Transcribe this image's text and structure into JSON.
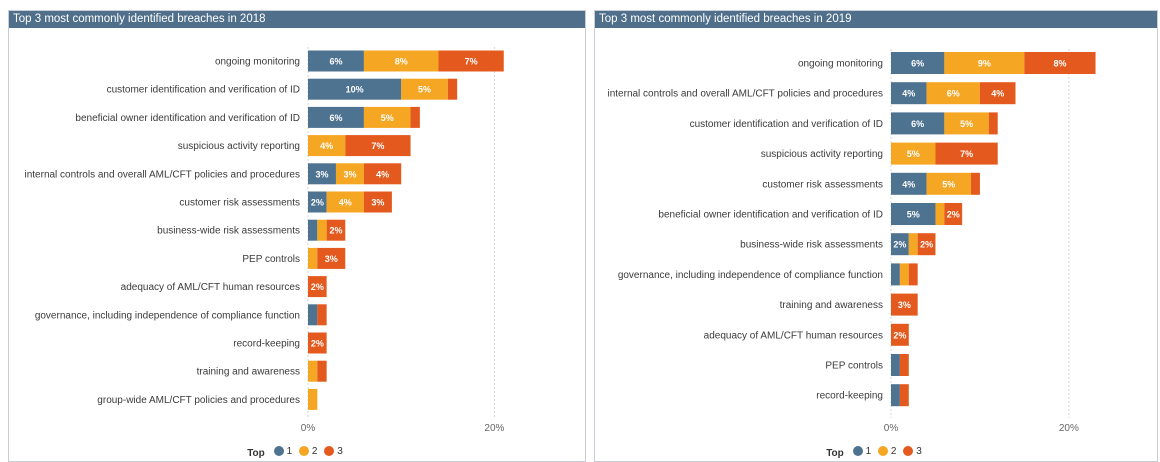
{
  "colors": {
    "header_bg": "#4f6f8b",
    "s1": "#4e7391",
    "s2": "#f5a623",
    "s3": "#e4591e",
    "grid": "#d0d4da"
  },
  "legend": {
    "title": "Top",
    "items": [
      "1",
      "2",
      "3"
    ]
  },
  "chart_data": [
    {
      "type": "bar",
      "orientation": "horizontal",
      "stacked": true,
      "title": "Top 3 most commonly identified breaches in 2018",
      "categories": [
        "ongoing monitoring",
        "customer identification and verification of ID",
        "beneficial owner identification and verification of ID",
        "suspicious activity reporting",
        "internal controls and overall AML/CFT policies and procedures",
        "customer risk assessments",
        "business-wide risk assessments",
        "PEP controls",
        "adequacy of AML/CFT human resources",
        "governance, including independence of compliance function",
        "record-keeping",
        "training and awareness",
        "group-wide AML/CFT policies and procedures"
      ],
      "series": [
        {
          "name": "1",
          "values": [
            6,
            10,
            6,
            0,
            3,
            2,
            1,
            0,
            0,
            1,
            0,
            0,
            0
          ]
        },
        {
          "name": "2",
          "values": [
            8,
            5,
            5,
            4,
            3,
            4,
            1,
            1,
            0,
            0,
            0,
            1,
            1
          ]
        },
        {
          "name": "3",
          "values": [
            7,
            1,
            1,
            7,
            4,
            3,
            2,
            3,
            2,
            1,
            2,
            1,
            0
          ]
        }
      ],
      "data_labels": [
        [
          "6%",
          "10%",
          "6%",
          "",
          "3%",
          "2%",
          "",
          "",
          "",
          "",
          "",
          "",
          ""
        ],
        [
          "8%",
          "5%",
          "5%",
          "4%",
          "3%",
          "4%",
          "",
          "",
          "",
          "",
          "",
          "",
          ""
        ],
        [
          "7%",
          "",
          "",
          "7%",
          "4%",
          "3%",
          "2%",
          "3%",
          "2%",
          "",
          "2%",
          "",
          ""
        ]
      ],
      "x_ticks": [
        "0%",
        "20%"
      ],
      "xlim": [
        0,
        28
      ]
    },
    {
      "type": "bar",
      "orientation": "horizontal",
      "stacked": true,
      "title": "Top 3 most commonly identified breaches in 2019",
      "categories": [
        "ongoing monitoring",
        "internal controls and overall AML/CFT policies and procedures",
        "customer identification and verification of ID",
        "suspicious activity reporting",
        "customer risk assessments",
        "beneficial owner identification and verification of ID",
        "business-wide risk assessments",
        "governance, including independence of compliance function",
        "training and awareness",
        "adequacy of AML/CFT human resources",
        "PEP controls",
        "record-keeping"
      ],
      "series": [
        {
          "name": "1",
          "values": [
            6,
            4,
            6,
            0,
            4,
            5,
            2,
            1,
            0,
            0,
            1,
            1
          ]
        },
        {
          "name": "2",
          "values": [
            9,
            6,
            5,
            5,
            5,
            1,
            1,
            1,
            0,
            0,
            0,
            0
          ]
        },
        {
          "name": "3",
          "values": [
            8,
            4,
            1,
            7,
            1,
            2,
            2,
            1,
            3,
            2,
            1,
            1
          ]
        }
      ],
      "data_labels": [
        [
          "6%",
          "4%",
          "6%",
          "",
          "4%",
          "5%",
          "2%",
          "",
          "",
          "",
          "",
          ""
        ],
        [
          "9%",
          "6%",
          "5%",
          "5%",
          "5%",
          "",
          "",
          "",
          "",
          "",
          "",
          ""
        ],
        [
          "8%",
          "4%",
          "",
          "7%",
          "",
          "2%",
          "2%",
          "",
          "3%",
          "2%",
          "",
          ""
        ]
      ],
      "x_ticks": [
        "0%",
        "20%"
      ],
      "xlim": [
        0,
        28
      ]
    }
  ]
}
